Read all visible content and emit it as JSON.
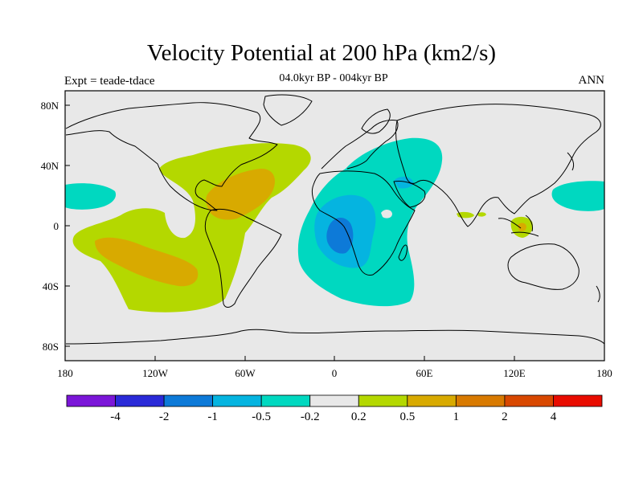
{
  "title": "Velocity Potential at 200 hPa (km2/s)",
  "subtitle": "04.0kyr BP - 004kyr BP",
  "left_label": "Expt = teade-tdace",
  "right_label": "ANN",
  "lon_ticks": [
    "180",
    "120W",
    "60W",
    "0",
    "60E",
    "120E",
    "180"
  ],
  "lat_ticks": [
    "80N",
    "40N",
    "0",
    "40S",
    "80S"
  ],
  "colorbar": {
    "colors": [
      "#7b16d8",
      "#2a2ad8",
      "#0d7ad8",
      "#05b4e0",
      "#00d8c0",
      "#e8e8e8",
      "#b4d800",
      "#d8aa00",
      "#d87a00",
      "#d84800",
      "#e80c00"
    ],
    "labels": [
      "-4",
      "-2",
      "-1",
      "-0.5",
      "-0.2",
      "0.2",
      "0.5",
      "1",
      "2",
      "4"
    ]
  },
  "fill_colors": {
    "ocean_land_bg": "#e8e8e8",
    "pos_weak": "#b4d800",
    "pos_mid": "#d8aa00",
    "pos_strong": "#d87a00",
    "neg_weak": "#00d8c0",
    "neg_mid": "#05b4e0",
    "neg_strong": "#0d7ad8"
  }
}
